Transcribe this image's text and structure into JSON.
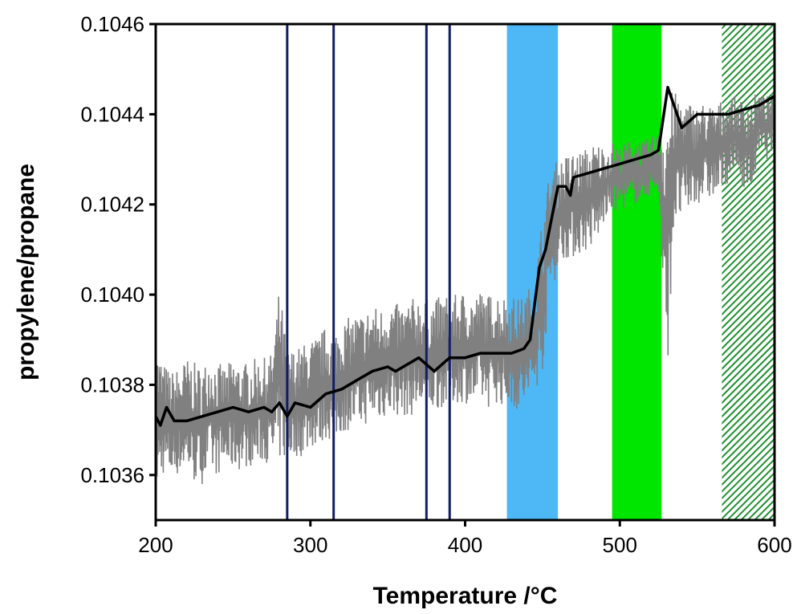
{
  "chart_data": {
    "type": "line",
    "title": "",
    "xlabel": "Temperature /°C",
    "ylabel": "propylene/propane",
    "xlim": [
      200,
      600
    ],
    "ylim": [
      0.1035,
      0.1046
    ],
    "xticks": [
      200,
      300,
      400,
      500,
      600
    ],
    "xtick_labels": [
      "200",
      "300",
      "400",
      "500",
      "600"
    ],
    "yticks": [
      0.1036,
      0.1038,
      0.104,
      0.1042,
      0.1044,
      0.1046
    ],
    "ytick_labels": [
      "0.1036",
      "0.1038",
      "0.1040",
      "0.1042",
      "0.1044",
      "0.1046"
    ],
    "grid": false,
    "legend": "none",
    "vertical_lines": {
      "color": "#101d6b",
      "x": [
        285,
        315,
        375,
        390
      ]
    },
    "bands": [
      {
        "x": [
          427,
          460
        ],
        "color": "#4db8f5",
        "pattern": "solid"
      },
      {
        "x": [
          495,
          527
        ],
        "color": "#00e600",
        "pattern": "solid"
      },
      {
        "x": [
          566,
          600
        ],
        "color": "#1e8f2e",
        "pattern": "hatched"
      }
    ],
    "series": [
      {
        "role": "raw",
        "color": "#808080",
        "x": [
          200,
          205,
          210,
          215,
          220,
          225,
          230,
          235,
          240,
          245,
          250,
          255,
          260,
          265,
          270,
          275,
          280,
          285,
          290,
          295,
          300,
          305,
          310,
          315,
          320,
          325,
          330,
          335,
          340,
          345,
          350,
          355,
          360,
          365,
          370,
          375,
          380,
          385,
          390,
          395,
          400,
          405,
          410,
          415,
          420,
          425,
          430,
          435,
          440,
          445,
          450,
          455,
          460,
          465,
          470,
          475,
          480,
          485,
          490,
          495,
          500,
          505,
          510,
          515,
          520,
          525,
          530,
          535,
          540,
          545,
          550,
          555,
          560,
          565,
          570,
          575,
          580,
          585,
          590,
          595,
          600
        ],
        "y_upper": [
          0.10389,
          0.10385,
          0.10383,
          0.10384,
          0.10386,
          0.10385,
          0.10384,
          0.10387,
          0.10385,
          0.10384,
          0.10386,
          0.10385,
          0.10385,
          0.10386,
          0.10386,
          0.10387,
          0.10402,
          0.10388,
          0.10388,
          0.10389,
          0.1039,
          0.10391,
          0.10393,
          0.10392,
          0.10394,
          0.10395,
          0.10396,
          0.10396,
          0.10398,
          0.10397,
          0.10399,
          0.10398,
          0.10398,
          0.10399,
          0.104,
          0.10399,
          0.10399,
          0.104,
          0.104,
          0.104,
          0.10401,
          0.104,
          0.10401,
          0.104,
          0.10401,
          0.104,
          0.104,
          0.10399,
          0.10401,
          0.10404,
          0.10418,
          0.10428,
          0.1043,
          0.10431,
          0.10432,
          0.10432,
          0.10433,
          0.10434,
          0.10433,
          0.10434,
          0.10433,
          0.10434,
          0.10435,
          0.10434,
          0.10435,
          0.10436,
          0.10446,
          0.10445,
          0.10444,
          0.10443,
          0.10442,
          0.10443,
          0.10442,
          0.10443,
          0.10444,
          0.10444,
          0.10443,
          0.10444,
          0.10445,
          0.10444,
          0.10445
        ],
        "y_lower": [
          0.10356,
          0.1036,
          0.10359,
          0.1036,
          0.10361,
          0.10358,
          0.10358,
          0.1036,
          0.1036,
          0.10361,
          0.10361,
          0.10361,
          0.10362,
          0.10362,
          0.10363,
          0.10362,
          0.10363,
          0.10363,
          0.10364,
          0.10364,
          0.10366,
          0.10366,
          0.10368,
          0.10367,
          0.10369,
          0.1037,
          0.1037,
          0.10371,
          0.10372,
          0.10372,
          0.10373,
          0.10373,
          0.10373,
          0.10373,
          0.10374,
          0.10374,
          0.10374,
          0.10375,
          0.10375,
          0.10376,
          0.10376,
          0.10375,
          0.10376,
          0.10375,
          0.10376,
          0.10375,
          0.10375,
          0.10374,
          0.10375,
          0.10378,
          0.10383,
          0.104,
          0.10405,
          0.10408,
          0.10408,
          0.10409,
          0.1041,
          0.10411,
          0.10416,
          0.10418,
          0.10419,
          0.10419,
          0.1042,
          0.10421,
          0.10422,
          0.10422,
          0.10378,
          0.10415,
          0.10416,
          0.10418,
          0.1042,
          0.10421,
          0.10421,
          0.10422,
          0.10425,
          0.10426,
          0.10424,
          0.10422,
          0.10431,
          0.1043,
          0.10432
        ]
      },
      {
        "role": "smoothed",
        "color": "#000000",
        "x": [
          200,
          203,
          207,
          212,
          220,
          230,
          240,
          250,
          260,
          270,
          275,
          280,
          285,
          290,
          300,
          310,
          320,
          330,
          340,
          350,
          355,
          360,
          370,
          380,
          390,
          400,
          410,
          420,
          430,
          438,
          442,
          445,
          448,
          452,
          456,
          460,
          465,
          468,
          470,
          480,
          490,
          500,
          510,
          520,
          525,
          528,
          531,
          535,
          540,
          550,
          560,
          570,
          580,
          590,
          600
        ],
        "y": [
          0.10373,
          0.10371,
          0.10375,
          0.10372,
          0.10372,
          0.10373,
          0.10374,
          0.10375,
          0.10374,
          0.10375,
          0.10374,
          0.10376,
          0.10373,
          0.10376,
          0.10375,
          0.10378,
          0.10379,
          0.10381,
          0.10383,
          0.10384,
          0.10383,
          0.10384,
          0.10386,
          0.10383,
          0.10386,
          0.10386,
          0.10387,
          0.10387,
          0.10387,
          0.10388,
          0.1039,
          0.10398,
          0.10406,
          0.1041,
          0.10417,
          0.10424,
          0.10424,
          0.10422,
          0.10426,
          0.10427,
          0.10428,
          0.10429,
          0.1043,
          0.10431,
          0.10432,
          0.10439,
          0.10446,
          0.10442,
          0.10437,
          0.1044,
          0.1044,
          0.1044,
          0.10441,
          0.10442,
          0.10444
        ]
      }
    ]
  }
}
